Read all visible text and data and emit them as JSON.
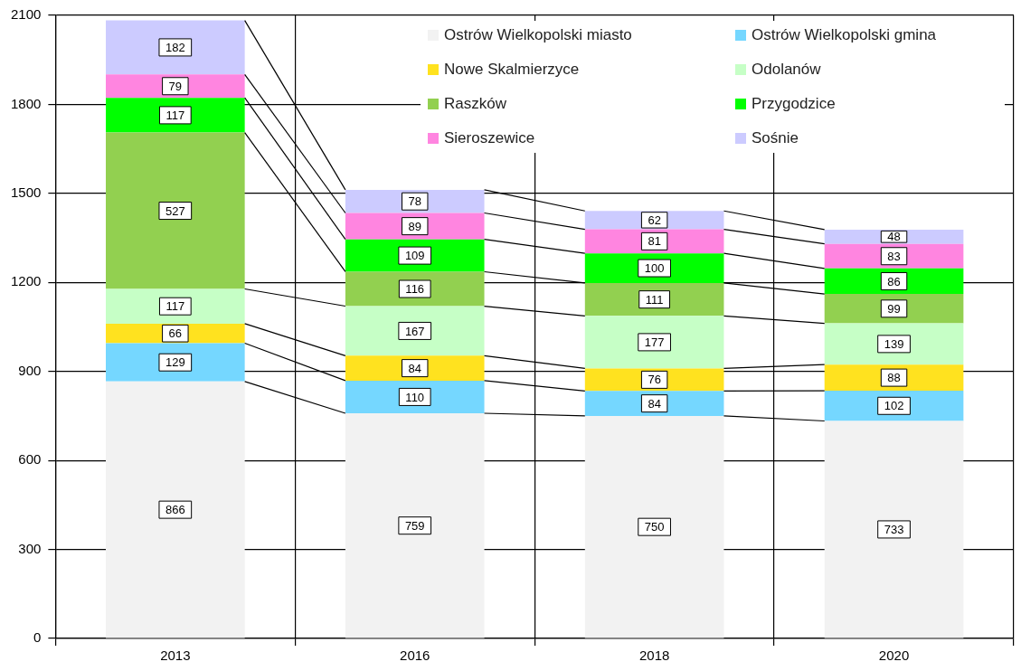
{
  "chart_data": {
    "type": "bar",
    "stacked": true,
    "categories": [
      "2013",
      "2016",
      "2018",
      "2020"
    ],
    "series": [
      {
        "name": "Ostrów Wielkopolski miasto",
        "color": "#f2f2f2",
        "values": [
          866,
          759,
          750,
          733
        ]
      },
      {
        "name": "Ostrów Wielkopolski gmina",
        "color": "#75d7ff",
        "values": [
          129,
          110,
          84,
          102
        ]
      },
      {
        "name": "Nowe Skalmierzyce",
        "color": "#ffe21f",
        "values": [
          66,
          84,
          76,
          88
        ]
      },
      {
        "name": "Odolanów",
        "color": "#c6ffc6",
        "values": [
          117,
          167,
          177,
          139
        ]
      },
      {
        "name": "Raszków",
        "color": "#92d050",
        "values": [
          527,
          116,
          111,
          99
        ]
      },
      {
        "name": "Przygodzice",
        "color": "#00ff00",
        "values": [
          117,
          109,
          100,
          86
        ]
      },
      {
        "name": "Sieroszewice",
        "color": "#ff85e0",
        "values": [
          79,
          89,
          81,
          83
        ]
      },
      {
        "name": "Sośnie",
        "color": "#cccbff",
        "values": [
          182,
          78,
          62,
          48
        ]
      }
    ],
    "ylim": [
      0,
      2100
    ],
    "yticks": [
      0,
      300,
      600,
      900,
      1200,
      1500,
      1800,
      2100
    ],
    "grid": true,
    "legend": "top right",
    "data_labels": true
  }
}
